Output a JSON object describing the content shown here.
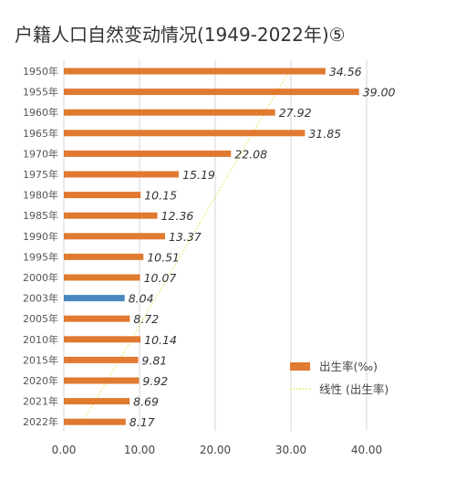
{
  "chart_data": {
    "type": "bar",
    "orientation": "horizontal",
    "title": "户籍人口自然变动情况(1949-2022年)⑤",
    "categories": [
      "1950年",
      "1955年",
      "1960年",
      "1965年",
      "1970年",
      "1975年",
      "1980年",
      "1985年",
      "1990年",
      "1995年",
      "2000年",
      "2003年",
      "2005年",
      "2010年",
      "2015年",
      "2020年",
      "2021年",
      "2022年"
    ],
    "series": [
      {
        "name": "出生率(‰)",
        "values": [
          34.56,
          39.0,
          27.92,
          31.85,
          22.08,
          15.19,
          10.15,
          12.36,
          13.37,
          10.51,
          10.07,
          8.04,
          8.72,
          10.14,
          9.81,
          9.92,
          8.69,
          8.17
        ],
        "value_labels": [
          "34.56",
          "39.00",
          "27.92",
          "31.85",
          "22.08",
          "15.19",
          "10.15",
          "12.36",
          "13.37",
          "10.51",
          "10.07",
          "8.04",
          "8.72",
          "10.14",
          "9.81",
          "9.92",
          "8.69",
          "8.17"
        ],
        "color": "#E07A30",
        "highlight_index": 11,
        "highlight_color": "#4A86C0",
        "highlight_label_color": "#4A86C0"
      },
      {
        "name": "线性 (出生率)",
        "kind": "linear-trendline",
        "color": "#E8E45A"
      }
    ],
    "x_ticks": [
      "0.00",
      "10.00",
      "20.00",
      "30.00",
      "40.00"
    ],
    "xlim": [
      0,
      40
    ],
    "xlabel": "",
    "ylabel": "",
    "grid": true,
    "legend_position": "bottom-right"
  }
}
